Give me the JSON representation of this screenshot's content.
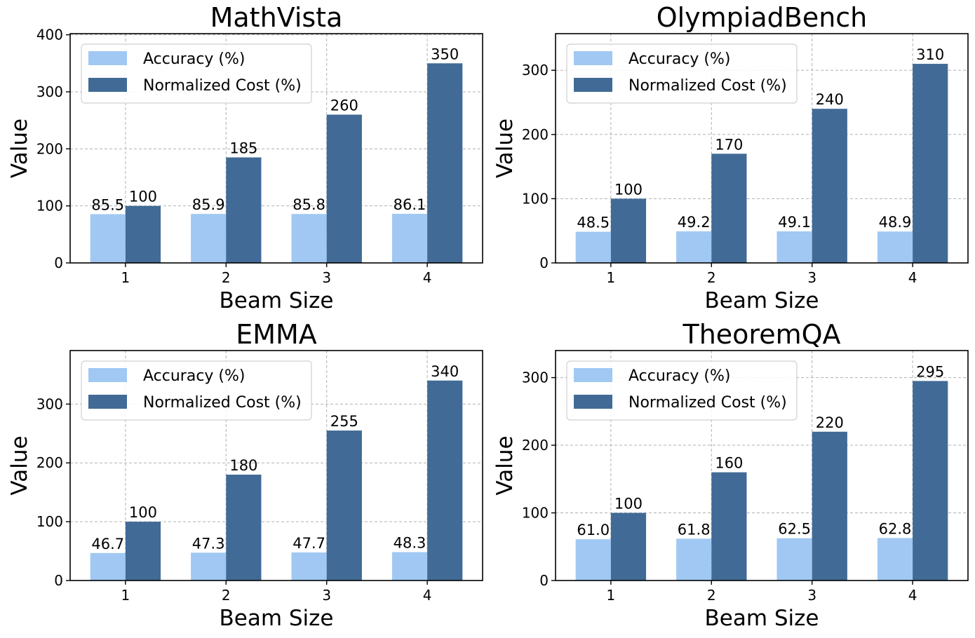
{
  "colors": {
    "accuracy": "#a0c8f3",
    "cost": "#416b96"
  },
  "chart_data": [
    {
      "type": "bar",
      "title": "MathVista",
      "xlabel": "Beam Size",
      "ylabel": "Value",
      "categories": [
        "1",
        "2",
        "3",
        "4"
      ],
      "series": [
        {
          "name": "Accuracy (%)",
          "values": [
            85.5,
            85.9,
            85.8,
            86.1
          ],
          "labels": [
            "85.5",
            "85.9",
            "85.8",
            "86.1"
          ]
        },
        {
          "name": "Normalized Cost (%)",
          "values": [
            100,
            185,
            260,
            350
          ],
          "labels": [
            "100",
            "185",
            "260",
            "350"
          ]
        }
      ],
      "ylim": [
        0,
        402
      ],
      "yticks": [
        0,
        100,
        200,
        300,
        400
      ],
      "legend": "top-left",
      "grid": true
    },
    {
      "type": "bar",
      "title": "OlympiadBench",
      "xlabel": "Beam Size",
      "ylabel": "Value",
      "categories": [
        "1",
        "2",
        "3",
        "4"
      ],
      "series": [
        {
          "name": "Accuracy (%)",
          "values": [
            48.5,
            49.2,
            49.1,
            48.9
          ],
          "labels": [
            "48.5",
            "49.2",
            "49.1",
            "48.9"
          ]
        },
        {
          "name": "Normalized Cost (%)",
          "values": [
            100,
            170,
            240,
            310
          ],
          "labels": [
            "100",
            "170",
            "240",
            "310"
          ]
        }
      ],
      "ylim": [
        0,
        357
      ],
      "yticks": [
        0,
        100,
        200,
        300
      ],
      "legend": "top-left",
      "grid": true
    },
    {
      "type": "bar",
      "title": "EMMA",
      "xlabel": "Beam Size",
      "ylabel": "Value",
      "categories": [
        "1",
        "2",
        "3",
        "4"
      ],
      "series": [
        {
          "name": "Accuracy (%)",
          "values": [
            46.7,
            47.3,
            47.7,
            48.3
          ],
          "labels": [
            "46.7",
            "47.3",
            "47.7",
            "48.3"
          ]
        },
        {
          "name": "Normalized Cost (%)",
          "values": [
            100,
            180,
            255,
            340
          ],
          "labels": [
            "100",
            "180",
            "255",
            "340"
          ]
        }
      ],
      "ylim": [
        0,
        391
      ],
      "yticks": [
        0,
        100,
        200,
        300
      ],
      "legend": "top-left",
      "grid": true
    },
    {
      "type": "bar",
      "title": "TheoremQA",
      "xlabel": "Beam Size",
      "ylabel": "Value",
      "categories": [
        "1",
        "2",
        "3",
        "4"
      ],
      "series": [
        {
          "name": "Accuracy (%)",
          "values": [
            61.0,
            61.8,
            62.5,
            62.8
          ],
          "labels": [
            "61.0",
            "61.8",
            "62.5",
            "62.8"
          ]
        },
        {
          "name": "Normalized Cost (%)",
          "values": [
            100,
            160,
            220,
            295
          ],
          "labels": [
            "100",
            "160",
            "220",
            "295"
          ]
        }
      ],
      "ylim": [
        0,
        340
      ],
      "yticks": [
        0,
        100,
        200,
        300
      ],
      "legend": "top-left",
      "grid": true
    }
  ]
}
